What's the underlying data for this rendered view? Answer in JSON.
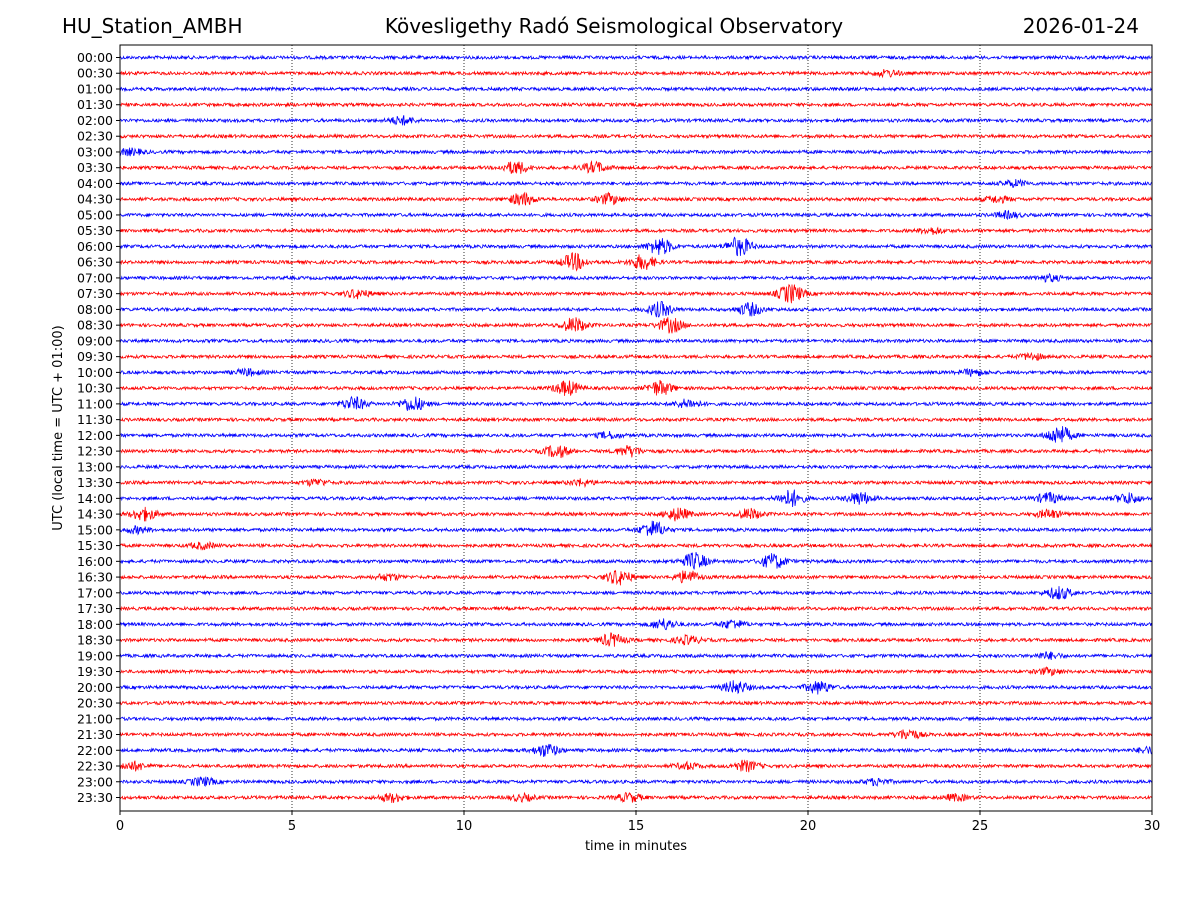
{
  "header": {
    "station": "HU_Station_AMBH",
    "observatory": "Kövesligethy Radó Seismological Observatory",
    "date": "2026-01-24"
  },
  "chart_data": {
    "type": "line",
    "title": "Kövesligethy Radó Seismological Observatory",
    "xlabel": "time in minutes",
    "ylabel": "UTC (local time = UTC + 01:00)",
    "xlim": [
      0,
      30
    ],
    "xticks": [
      0,
      5,
      10,
      15,
      20,
      25,
      30
    ],
    "grid": "vertical dotted lines at every 5 minutes",
    "trace_colors": [
      "#0000ff",
      "#ff0000"
    ],
    "series": [
      {
        "name": "00:00",
        "bursts": []
      },
      {
        "name": "00:30",
        "bursts": [
          {
            "t": 22.3,
            "amp": 3
          }
        ]
      },
      {
        "name": "01:00",
        "bursts": []
      },
      {
        "name": "01:30",
        "bursts": []
      },
      {
        "name": "02:00",
        "bursts": [
          {
            "t": 8.2,
            "amp": 4
          }
        ]
      },
      {
        "name": "02:30",
        "bursts": []
      },
      {
        "name": "03:00",
        "bursts": [
          {
            "t": 0.3,
            "amp": 3
          }
        ]
      },
      {
        "name": "03:30",
        "bursts": [
          {
            "t": 11.5,
            "amp": 6
          },
          {
            "t": 13.8,
            "amp": 5
          }
        ]
      },
      {
        "name": "04:00",
        "bursts": [
          {
            "t": 26,
            "amp": 3
          }
        ]
      },
      {
        "name": "04:30",
        "bursts": [
          {
            "t": 11.7,
            "amp": 6
          },
          {
            "t": 14.2,
            "amp": 5
          },
          {
            "t": 25.5,
            "amp": 3
          }
        ]
      },
      {
        "name": "05:00",
        "bursts": [
          {
            "t": 25.8,
            "amp": 3
          }
        ]
      },
      {
        "name": "05:30",
        "bursts": [
          {
            "t": 23.6,
            "amp": 3
          }
        ]
      },
      {
        "name": "06:00",
        "bursts": [
          {
            "t": 15.7,
            "amp": 8
          },
          {
            "t": 18,
            "amp": 9
          }
        ]
      },
      {
        "name": "06:30",
        "bursts": [
          {
            "t": 13.2,
            "amp": 8
          },
          {
            "t": 15.2,
            "amp": 7
          }
        ]
      },
      {
        "name": "07:00",
        "bursts": [
          {
            "t": 27,
            "amp": 3
          }
        ]
      },
      {
        "name": "07:30",
        "bursts": [
          {
            "t": 6.9,
            "amp": 4
          },
          {
            "t": 19.5,
            "amp": 9
          }
        ]
      },
      {
        "name": "08:00",
        "bursts": [
          {
            "t": 15.7,
            "amp": 7
          },
          {
            "t": 18.3,
            "amp": 6
          }
        ]
      },
      {
        "name": "08:30",
        "bursts": [
          {
            "t": 13.2,
            "amp": 7
          },
          {
            "t": 16,
            "amp": 7
          }
        ]
      },
      {
        "name": "09:00",
        "bursts": []
      },
      {
        "name": "09:30",
        "bursts": [
          {
            "t": 26.5,
            "amp": 3
          }
        ]
      },
      {
        "name": "10:00",
        "bursts": [
          {
            "t": 3.7,
            "amp": 3
          },
          {
            "t": 24.8,
            "amp": 3
          }
        ]
      },
      {
        "name": "10:30",
        "bursts": [
          {
            "t": 13,
            "amp": 7
          },
          {
            "t": 15.7,
            "amp": 7
          }
        ]
      },
      {
        "name": "11:00",
        "bursts": [
          {
            "t": 6.8,
            "amp": 6
          },
          {
            "t": 8.5,
            "amp": 7
          },
          {
            "t": 16.5,
            "amp": 4
          }
        ]
      },
      {
        "name": "11:30",
        "bursts": []
      },
      {
        "name": "12:00",
        "bursts": [
          {
            "t": 27.3,
            "amp": 9
          },
          {
            "t": 14.2,
            "amp": 3
          }
        ]
      },
      {
        "name": "12:30",
        "bursts": [
          {
            "t": 12.7,
            "amp": 6
          },
          {
            "t": 14.8,
            "amp": 5
          }
        ]
      },
      {
        "name": "13:00",
        "bursts": []
      },
      {
        "name": "13:30",
        "bursts": [
          {
            "t": 5.7,
            "amp": 3
          },
          {
            "t": 13.4,
            "amp": 3
          }
        ]
      },
      {
        "name": "14:00",
        "bursts": [
          {
            "t": 19.5,
            "amp": 8
          },
          {
            "t": 21.5,
            "amp": 6
          },
          {
            "t": 27,
            "amp": 5
          },
          {
            "t": 29.3,
            "amp": 5
          }
        ]
      },
      {
        "name": "14:30",
        "bursts": [
          {
            "t": 0.7,
            "amp": 6
          },
          {
            "t": 16.2,
            "amp": 6
          },
          {
            "t": 18.3,
            "amp": 5
          },
          {
            "t": 27,
            "amp": 4
          }
        ]
      },
      {
        "name": "15:00",
        "bursts": [
          {
            "t": 15.5,
            "amp": 8
          },
          {
            "t": 0.5,
            "amp": 3
          }
        ]
      },
      {
        "name": "15:30",
        "bursts": [
          {
            "t": 2.4,
            "amp": 3
          }
        ]
      },
      {
        "name": "16:00",
        "bursts": [
          {
            "t": 16.7,
            "amp": 8
          },
          {
            "t": 19,
            "amp": 7
          }
        ]
      },
      {
        "name": "16:30",
        "bursts": [
          {
            "t": 14.5,
            "amp": 7
          },
          {
            "t": 16.5,
            "amp": 6
          },
          {
            "t": 7.8,
            "amp": 3
          }
        ]
      },
      {
        "name": "17:00",
        "bursts": [
          {
            "t": 27.3,
            "amp": 6
          }
        ]
      },
      {
        "name": "17:30",
        "bursts": []
      },
      {
        "name": "18:00",
        "bursts": [
          {
            "t": 15.8,
            "amp": 5
          },
          {
            "t": 17.8,
            "amp": 4
          }
        ]
      },
      {
        "name": "18:30",
        "bursts": [
          {
            "t": 14.3,
            "amp": 6
          },
          {
            "t": 16.5,
            "amp": 4
          }
        ]
      },
      {
        "name": "19:00",
        "bursts": [
          {
            "t": 27,
            "amp": 3
          }
        ]
      },
      {
        "name": "19:30",
        "bursts": [
          {
            "t": 27,
            "amp": 3
          }
        ]
      },
      {
        "name": "20:00",
        "bursts": [
          {
            "t": 17.9,
            "amp": 6
          },
          {
            "t": 20.3,
            "amp": 6
          }
        ]
      },
      {
        "name": "20:30",
        "bursts": []
      },
      {
        "name": "21:00",
        "bursts": []
      },
      {
        "name": "21:30",
        "bursts": [
          {
            "t": 22.9,
            "amp": 5
          }
        ]
      },
      {
        "name": "22:00",
        "bursts": [
          {
            "t": 12.4,
            "amp": 6
          },
          {
            "t": 29.9,
            "amp": 3
          }
        ]
      },
      {
        "name": "22:30",
        "bursts": [
          {
            "t": 0.4,
            "amp": 4
          },
          {
            "t": 16.5,
            "amp": 3
          },
          {
            "t": 18.2,
            "amp": 5
          }
        ]
      },
      {
        "name": "23:00",
        "bursts": [
          {
            "t": 2.4,
            "amp": 4
          },
          {
            "t": 22,
            "amp": 3
          }
        ]
      },
      {
        "name": "23:30",
        "bursts": [
          {
            "t": 7.9,
            "amp": 4
          },
          {
            "t": 11.7,
            "amp": 3
          },
          {
            "t": 14.8,
            "amp": 4
          },
          {
            "t": 24.3,
            "amp": 3
          }
        ]
      }
    ]
  }
}
